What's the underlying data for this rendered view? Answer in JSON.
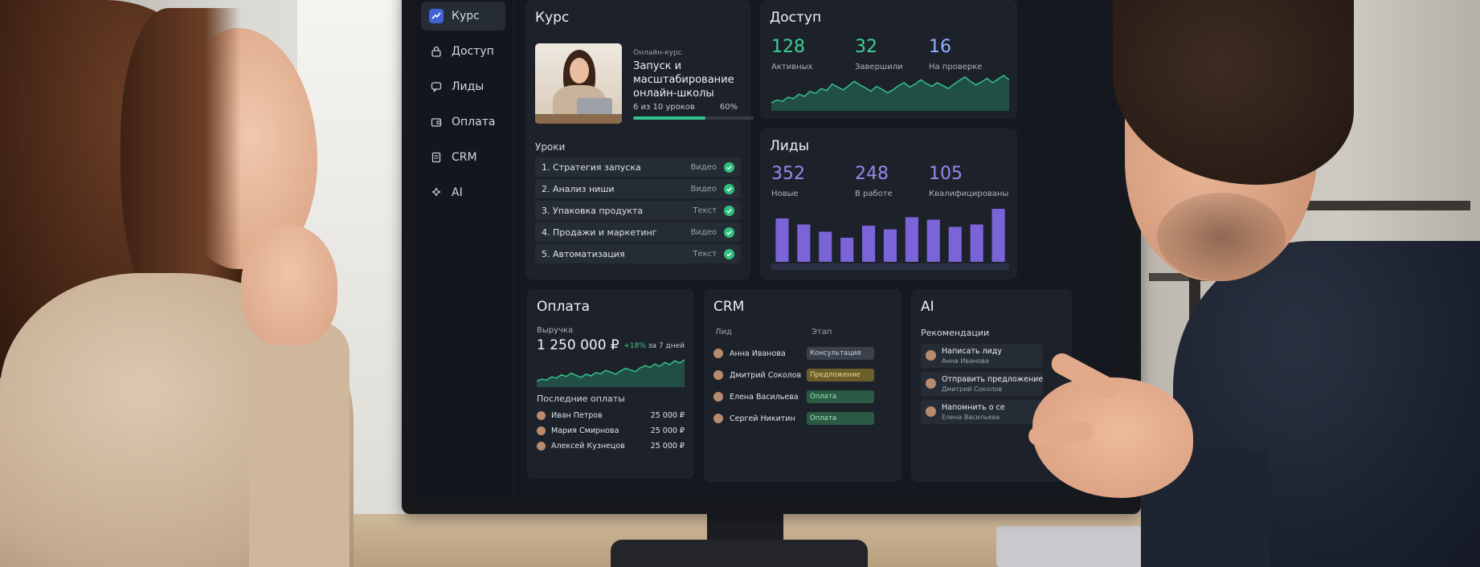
{
  "colors": {
    "accent_green": "#32c48d",
    "accent_purple": "#7a64d8",
    "stage_gray": "#3a414c",
    "stage_yellow": "#6c5e2a",
    "stage_green": "#2a5a43"
  },
  "sidebar": {
    "items": [
      {
        "label": "Курс",
        "icon": "chart-icon",
        "active": true
      },
      {
        "label": "Доступ",
        "icon": "lock-icon",
        "active": false
      },
      {
        "label": "Лиды",
        "icon": "chat-icon",
        "active": false
      },
      {
        "label": "Оплата",
        "icon": "wallet-icon",
        "active": false
      },
      {
        "label": "CRM",
        "icon": "document-icon",
        "active": false
      },
      {
        "label": "AI",
        "icon": "sparkle-icon",
        "active": false
      }
    ]
  },
  "course": {
    "title": "Курс",
    "kind": "Онлайн-курс",
    "name": "Запуск и масштабирование онлайн-школы",
    "progress_text": "6 из 10 уроков",
    "progress_pct_label": "60%",
    "progress": 0.6,
    "lessons_title": "Уроки",
    "lessons": [
      {
        "label": "1. Стратегия запуска",
        "type": "Видео"
      },
      {
        "label": "2. Анализ ниши",
        "type": "Видео"
      },
      {
        "label": "3. Упаковка продукта",
        "type": "Текст"
      },
      {
        "label": "4. Продажи и маркетинг",
        "type": "Видео"
      },
      {
        "label": "5. Автоматизация",
        "type": "Текст"
      }
    ]
  },
  "access": {
    "title": "Доступ",
    "stats": [
      {
        "value": "128",
        "label": "Активных"
      },
      {
        "value": "32",
        "label": "Завершили"
      },
      {
        "value": "16",
        "label": "На проверке"
      }
    ],
    "trend": [
      22,
      26,
      24,
      30,
      28,
      34,
      31,
      38,
      35,
      42,
      39,
      48,
      44,
      40,
      46,
      52,
      47,
      43,
      38,
      45,
      41,
      36,
      40,
      46,
      50,
      44,
      48,
      54,
      49,
      45,
      50,
      46,
      42,
      48,
      53,
      58,
      52,
      47,
      51,
      56,
      50,
      55,
      60,
      54
    ]
  },
  "leads": {
    "title": "Лиды",
    "stats": [
      {
        "value": "352",
        "label": "Новые"
      },
      {
        "value": "248",
        "label": "В работе"
      },
      {
        "value": "105",
        "label": "Квалифицированы"
      }
    ],
    "bars": [
      72,
      62,
      50,
      40,
      60,
      54,
      74,
      70,
      58,
      62,
      88
    ]
  },
  "payment": {
    "title": "Оплата",
    "sub": "Выручка",
    "amount": "1 250 000 ₽",
    "growth_up": "+18%",
    "growth_rest": " за 7 дней",
    "trend": [
      20,
      24,
      22,
      28,
      26,
      32,
      29,
      35,
      31,
      27,
      33,
      30,
      36,
      34,
      40,
      37,
      33,
      39,
      44,
      41,
      38,
      45,
      49,
      46,
      52,
      48,
      55,
      51,
      58,
      54,
      60
    ],
    "recent_title": "Последние оплаты",
    "rows": [
      {
        "name": "Иван Петров",
        "amount": "25 000 ₽"
      },
      {
        "name": "Мария Смирнова",
        "amount": "25 000 ₽"
      },
      {
        "name": "Алексей Кузнецов",
        "amount": "25 000 ₽"
      }
    ]
  },
  "crm": {
    "title": "CRM",
    "col_lead": "Лид",
    "col_stage": "Этап",
    "rows": [
      {
        "name": "Анна Иванова",
        "stage": "Консультация",
        "color": "#3a414c",
        "text": "#c9ced6"
      },
      {
        "name": "Дмитрий Соколов",
        "stage": "Предложение",
        "color": "#6c5e2a",
        "text": "#e8d890"
      },
      {
        "name": "Елена Васильева",
        "stage": "Оплата",
        "color": "#2a5a43",
        "text": "#9fe3bf"
      },
      {
        "name": "Сергей Никитин",
        "stage": "Оплата",
        "color": "#2a5a43",
        "text": "#9fe3bf"
      }
    ]
  },
  "ai": {
    "title": "AI",
    "sub": "Рекомендации",
    "items": [
      {
        "title": "Написать лиду",
        "sub": "Анна Иванова"
      },
      {
        "title": "Отправить предложение",
        "sub": "Дмитрий Соколов"
      },
      {
        "title": "Напомнить о се",
        "sub": "Елена Васильева"
      }
    ]
  }
}
